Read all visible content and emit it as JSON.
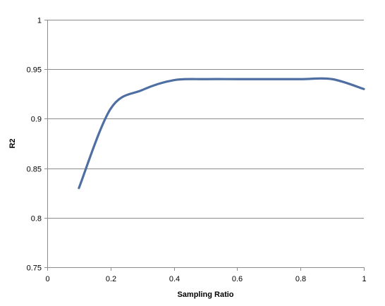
{
  "chart_data": {
    "type": "line",
    "title": "",
    "xlabel": "Sampling Ratio",
    "ylabel": "R2",
    "xlim": [
      0,
      1
    ],
    "ylim": [
      0.75,
      1
    ],
    "x_ticks": [
      {
        "value": 0,
        "label": "0"
      },
      {
        "value": 0.2,
        "label": "0.2"
      },
      {
        "value": 0.4,
        "label": "0.4"
      },
      {
        "value": 0.6,
        "label": "0.6"
      },
      {
        "value": 0.8,
        "label": "0.8"
      },
      {
        "value": 1,
        "label": "1"
      }
    ],
    "y_ticks": [
      {
        "value": 0.75,
        "label": "0.75"
      },
      {
        "value": 0.8,
        "label": "0.8"
      },
      {
        "value": 0.85,
        "label": "0.85"
      },
      {
        "value": 0.9,
        "label": "0.9"
      },
      {
        "value": 0.95,
        "label": "0.95"
      },
      {
        "value": 1,
        "label": "1"
      }
    ],
    "grid": "horizontal",
    "legend": "none",
    "series": [
      {
        "color": "#4f6fa3",
        "x": [
          0.1,
          0.2,
          0.3,
          0.4,
          0.5,
          0.6,
          0.7,
          0.8,
          0.9,
          1.0
        ],
        "y": [
          0.83,
          0.91,
          0.929,
          0.939,
          0.94,
          0.94,
          0.94,
          0.94,
          0.94,
          0.93
        ]
      }
    ]
  }
}
